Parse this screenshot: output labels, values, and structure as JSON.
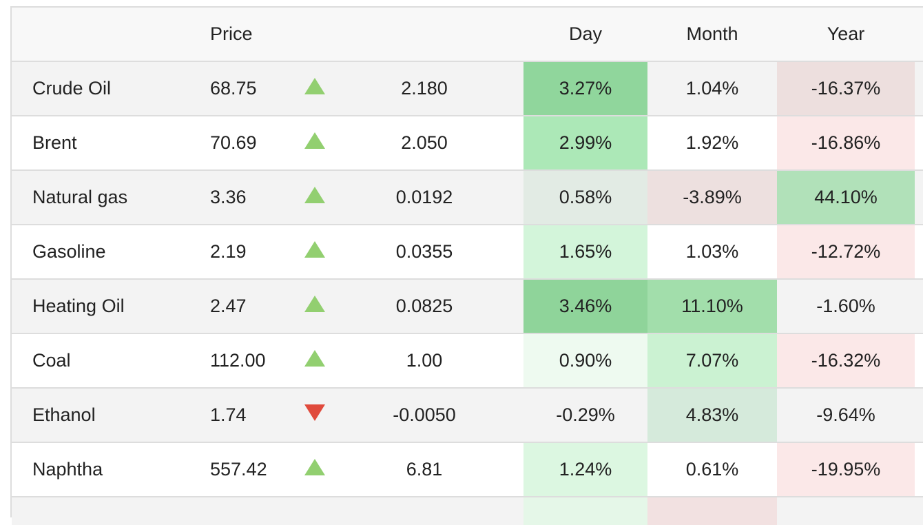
{
  "header": {
    "price": "Price",
    "day": "Day",
    "month": "Month",
    "year": "Year"
  },
  "rows": [
    {
      "name": "Crude Oil",
      "price": "68.75",
      "dir": "up",
      "change": "2.180",
      "day": "3.27%",
      "month": "1.04%",
      "year": "-16.37%"
    },
    {
      "name": "Brent",
      "price": "70.69",
      "dir": "up",
      "change": "2.050",
      "day": "2.99%",
      "month": "1.92%",
      "year": "-16.86%"
    },
    {
      "name": "Natural gas",
      "price": "3.36",
      "dir": "up",
      "change": "0.0192",
      "day": "0.58%",
      "month": "-3.89%",
      "year": "44.10%"
    },
    {
      "name": "Gasoline",
      "price": "2.19",
      "dir": "up",
      "change": "0.0355",
      "day": "1.65%",
      "month": "1.03%",
      "year": "-12.72%"
    },
    {
      "name": "Heating Oil",
      "price": "2.47",
      "dir": "up",
      "change": "0.0825",
      "day": "3.46%",
      "month": "11.10%",
      "year": "-1.60%"
    },
    {
      "name": "Coal",
      "price": "112.00",
      "dir": "up",
      "change": "1.00",
      "day": "0.90%",
      "month": "7.07%",
      "year": "-16.32%"
    },
    {
      "name": "Ethanol",
      "price": "1.74",
      "dir": "down",
      "change": "-0.0050",
      "day": "-0.29%",
      "month": "4.83%",
      "year": "-9.64%"
    },
    {
      "name": "Naphtha",
      "price": "557.42",
      "dir": "up",
      "change": "6.81",
      "day": "1.24%",
      "month": "0.61%",
      "year": "-19.95%"
    }
  ],
  "colors": {
    "arrow_up": "#92cf70",
    "arrow_down": "#e04a3c",
    "cells": [
      {
        "day": "#90d69c",
        "month": null,
        "year": "#eddfde"
      },
      {
        "day": "#ace8b7",
        "month": null,
        "year": "#fbe8e8"
      },
      {
        "day": "#e2ebe4",
        "month": "#ede0df",
        "year": "#b1e1b9"
      },
      {
        "day": "#d3f5da",
        "month": null,
        "year": "#fbe8e8"
      },
      {
        "day": "#8fd49a",
        "month": "#a2deab",
        "year": null
      },
      {
        "day": "#eefaf0",
        "month": "#cbf2d2",
        "year": "#fbe8e8"
      },
      {
        "day": null,
        "month": "#d5eadb",
        "year": null
      },
      {
        "day": "#dcf7e1",
        "month": null,
        "year": "#fbe8e8"
      }
    ],
    "partial": {
      "day": "#e5f7e8",
      "month": "#f2e1e1"
    }
  }
}
